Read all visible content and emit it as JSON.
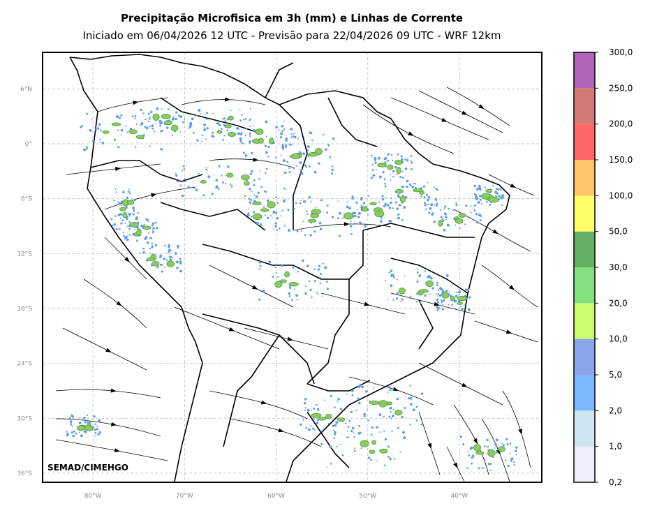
{
  "title": "Precipitação Microfisica em 3h (mm) e Linhas de Corrente",
  "subtitle": "Iniciado em 06/04/2026 12 UTC - Previsão para 22/04/2026 09 UTC - WRF 12km",
  "credit": "SEMAD/CIMEHGO",
  "map": {
    "lon_range": [
      -85.5,
      -31
    ],
    "lat_range": [
      -37,
      10
    ],
    "grid": true,
    "lat_ticks": [
      {
        "value": 6,
        "label": "6°N"
      },
      {
        "value": 0,
        "label": "0°"
      },
      {
        "value": -6,
        "label": "6°S"
      },
      {
        "value": -12,
        "label": "12°S"
      },
      {
        "value": -18,
        "label": "18°S"
      },
      {
        "value": -24,
        "label": "24°S"
      },
      {
        "value": -30,
        "label": "30°S"
      },
      {
        "value": -36,
        "label": "36°S"
      }
    ],
    "lon_ticks": [
      {
        "value": -80,
        "label": "80°W"
      },
      {
        "value": -70,
        "label": "70°W"
      },
      {
        "value": -60,
        "label": "60°W"
      },
      {
        "value": -50,
        "label": "50°W"
      },
      {
        "value": -40,
        "label": "40°W"
      }
    ]
  },
  "colorbar": {
    "labels": [
      "0,2",
      "1,0",
      "2,0",
      "5,0",
      "10,0",
      "20,0",
      "30,0",
      "50,0",
      "100,0",
      "150,0",
      "200,0",
      "250,0",
      "300,0"
    ],
    "colors": [
      "#eeeefa",
      "#cde6f0",
      "#79b8ff",
      "#8ba5ef",
      "#c8fb6e",
      "#84e07e",
      "#62b062",
      "#ffff66",
      "#ffc466",
      "#ff6666",
      "#d47a74",
      "#b163b9"
    ]
  },
  "colors": {
    "light_rain": "#5c9ee8",
    "moderate_rain": "#8ccc5c",
    "heavy_rain": "#4a9a4a",
    "border": "#000000",
    "grid": "#bbbbbb",
    "tick_label": "#888888"
  }
}
